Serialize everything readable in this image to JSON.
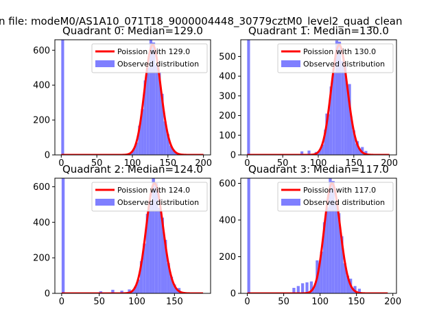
{
  "figure": {
    "suptitle": "n file: modeM0/AS1A10_071T18_9000004448_30779cztM0_level2_quad_clean"
  },
  "chart_data": [
    {
      "type": "bar",
      "title": "Quadrant 0: Median=129.0",
      "xlim": [
        -9,
        210
      ],
      "ylim": [
        0,
        660
      ],
      "xticks": [
        0,
        50,
        100,
        150,
        200
      ],
      "yticks": [
        0,
        200,
        400,
        600
      ],
      "xlabel": "",
      "ylabel": "",
      "median": 129.0,
      "bar_width": 4,
      "spike": {
        "x": 0,
        "value": 660
      },
      "line_end": 200,
      "bars_low": [
        {
          "x": 48,
          "v": 4
        },
        {
          "x": 68,
          "v": 5
        },
        {
          "x": 84,
          "v": 4
        }
      ],
      "bars_extra": [
        {
          "x": 153,
          "v": 30
        },
        {
          "x": 157,
          "v": 15
        },
        {
          "x": 161,
          "v": 7
        }
      ],
      "legend": {
        "location": "upper right",
        "entries": [
          "Poission with 129.0",
          "Observed distribution"
        ]
      },
      "colors": {
        "line": "#ff0000",
        "bar": "#7f7fff"
      }
    },
    {
      "type": "bar",
      "title": "Quadrant 1: Median=130.0",
      "xlim": [
        -9,
        210
      ],
      "ylim": [
        0,
        585
      ],
      "xticks": [
        0,
        50,
        100,
        150,
        200
      ],
      "yticks": [
        0,
        100,
        200,
        300,
        400,
        500
      ],
      "xlabel": "",
      "ylabel": "",
      "median": 130.0,
      "bar_width": 4,
      "spike": {
        "x": 0,
        "value": 585
      },
      "line_end": 200,
      "bars_low": [
        {
          "x": 75,
          "v": 18
        },
        {
          "x": 85,
          "v": 22
        },
        {
          "x": 95,
          "v": 15
        }
      ],
      "bars_extra": [
        {
          "x": 110,
          "v": 210
        },
        {
          "x": 142,
          "v": 360
        },
        {
          "x": 153,
          "v": 70
        },
        {
          "x": 160,
          "v": 40
        },
        {
          "x": 165,
          "v": 20
        }
      ],
      "legend": {
        "location": "upper right",
        "entries": [
          "Poission with 130.0",
          "Observed distribution"
        ]
      },
      "colors": {
        "line": "#ff0000",
        "bar": "#7f7fff"
      }
    },
    {
      "type": "bar",
      "title": "Quadrant 2: Median=124.0",
      "xlim": [
        -9,
        198
      ],
      "ylim": [
        0,
        648
      ],
      "xticks": [
        0,
        50,
        100,
        150
      ],
      "yticks": [
        0,
        200,
        400,
        600
      ],
      "xlabel": "",
      "ylabel": "",
      "median": 124.0,
      "bar_width": 4,
      "spike": {
        "x": 0,
        "value": 648
      },
      "line_end": 188,
      "bars_low": [
        {
          "x": 50,
          "v": 12
        },
        {
          "x": 66,
          "v": 20
        },
        {
          "x": 78,
          "v": 15
        },
        {
          "x": 88,
          "v": 22
        }
      ],
      "bars_extra": [
        {
          "x": 140,
          "v": 170
        },
        {
          "x": 148,
          "v": 50
        },
        {
          "x": 154,
          "v": 30
        }
      ],
      "legend": {
        "location": "upper right",
        "entries": [
          "Poission with 124.0",
          "Observed distribution"
        ]
      },
      "colors": {
        "line": "#ff0000",
        "bar": "#7f7fff"
      }
    },
    {
      "type": "bar",
      "title": "Quadrant 3: Median=117.0",
      "xlim": [
        -9,
        205
      ],
      "ylim": [
        0,
        628
      ],
      "xticks": [
        0,
        50,
        100,
        150,
        200
      ],
      "yticks": [
        0,
        200,
        400,
        600
      ],
      "xlabel": "",
      "ylabel": "",
      "median": 117.0,
      "bar_width": 4,
      "spike": {
        "x": 0,
        "value": 628
      },
      "line_end": 193,
      "bars_low": [
        {
          "x": 62,
          "v": 30
        },
        {
          "x": 68,
          "v": 40
        },
        {
          "x": 74,
          "v": 55
        },
        {
          "x": 80,
          "v": 60
        },
        {
          "x": 86,
          "v": 65
        }
      ],
      "bars_extra": [
        {
          "x": 94,
          "v": 180
        },
        {
          "x": 140,
          "v": 80
        },
        {
          "x": 146,
          "v": 40
        },
        {
          "x": 152,
          "v": 25
        }
      ],
      "legend": {
        "location": "upper right",
        "entries": [
          "Poission with 117.0",
          "Observed distribution"
        ]
      },
      "colors": {
        "line": "#ff0000",
        "bar": "#7f7fff"
      }
    }
  ]
}
